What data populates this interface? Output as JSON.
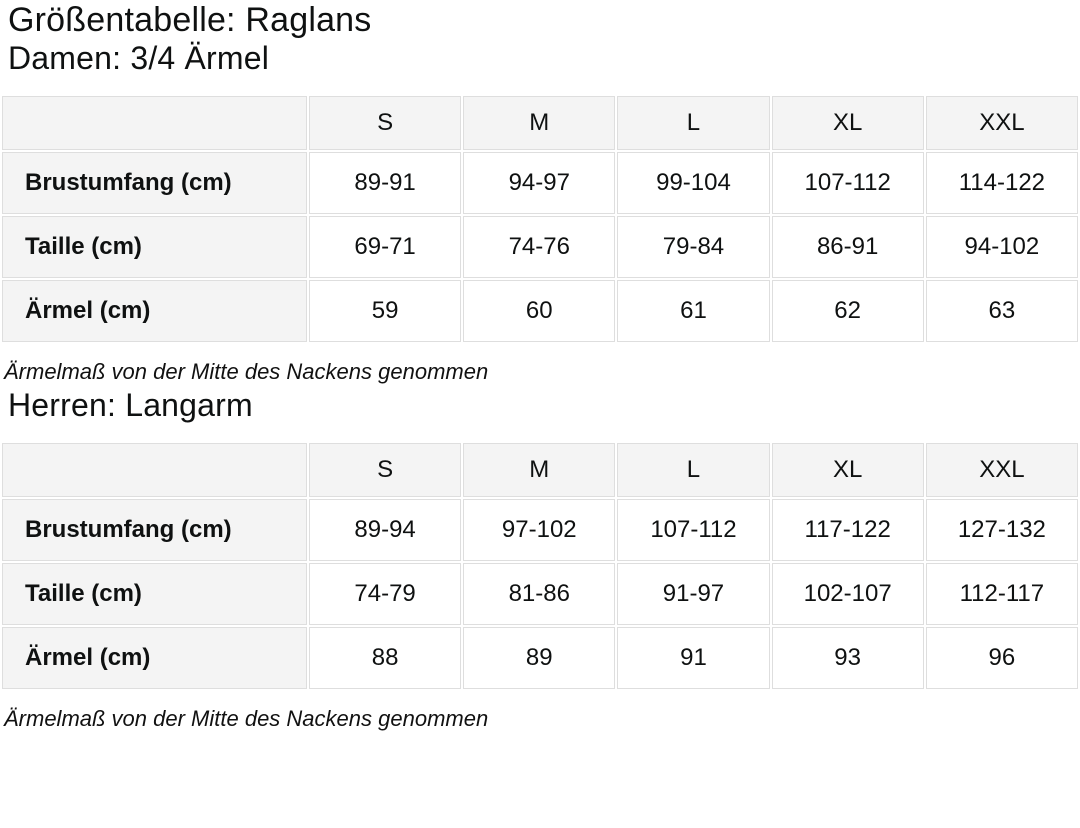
{
  "page": {
    "title": "Größentabelle: Raglans"
  },
  "sections": [
    {
      "heading": "Damen: 3/4 Ärmel",
      "note": "Ärmelmaß von der Mitte des Nackens genommen",
      "table": {
        "columns": [
          "S",
          "M",
          "L",
          "XL",
          "XXL"
        ],
        "rows": [
          {
            "label": "Brustumfang (cm)",
            "values": [
              "89-91",
              "94-97",
              "99-104",
              "107-112",
              "114-122"
            ]
          },
          {
            "label": "Taille (cm)",
            "values": [
              "69-71",
              "74-76",
              "79-84",
              "86-91",
              "94-102"
            ]
          },
          {
            "label": "Ärmel (cm)",
            "values": [
              "59",
              "60",
              "61",
              "62",
              "63"
            ]
          }
        ]
      }
    },
    {
      "heading": "Herren: Langarm",
      "note": "Ärmelmaß von der Mitte des Nackens genommen",
      "table": {
        "columns": [
          "S",
          "M",
          "L",
          "XL",
          "XXL"
        ],
        "rows": [
          {
            "label": "Brustumfang (cm)",
            "values": [
              "89-94",
              "97-102",
              "107-112",
              "117-122",
              "127-132"
            ]
          },
          {
            "label": "Taille (cm)",
            "values": [
              "74-79",
              "81-86",
              "91-97",
              "102-107",
              "112-117"
            ]
          },
          {
            "label": "Ärmel (cm)",
            "values": [
              "88",
              "89",
              "91",
              "93",
              "96"
            ]
          }
        ]
      }
    }
  ],
  "colors": {
    "header_cell_bg": "#f4f4f4",
    "cell_border": "#dedede",
    "text": "#0f1111",
    "page_bg": "#ffffff"
  }
}
